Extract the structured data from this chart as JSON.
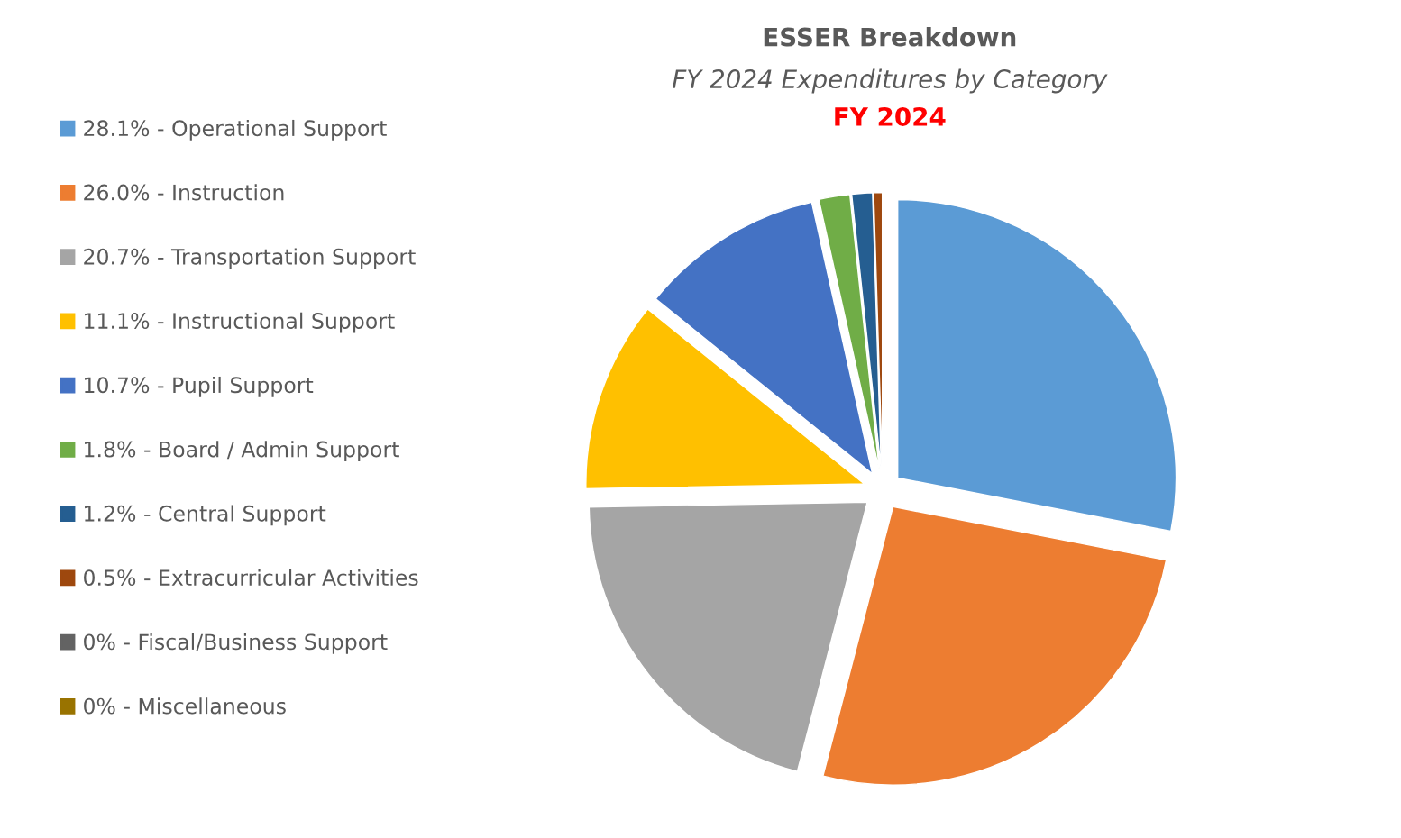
{
  "chart_data": {
    "type": "pie",
    "title": "ESSER Breakdown",
    "subtitle": "FY 2024 Expenditures by Category",
    "annotations": [
      "FY 2024"
    ],
    "categories": [
      "28.1% - Operational Support",
      "26.0% - Instruction",
      "20.7% - Transportation Support",
      "11.1% - Instructional Support",
      "10.7% - Pupil Support",
      "1.8% - Board / Admin Support",
      "1.2% - Central Support",
      "0.5% - Extracurricular Activities",
      "0% - Fiscal/Business Support",
      "0% - Miscellaneous"
    ],
    "values": [
      28.1,
      26.0,
      20.7,
      11.1,
      10.7,
      1.8,
      1.2,
      0.5,
      0,
      0
    ],
    "colors": [
      "#5b9bd5",
      "#ed7d31",
      "#a5a5a5",
      "#ffc000",
      "#4472c4",
      "#70ad47",
      "#255e91",
      "#9e480e",
      "#636363",
      "#997300"
    ],
    "legend": "left"
  }
}
